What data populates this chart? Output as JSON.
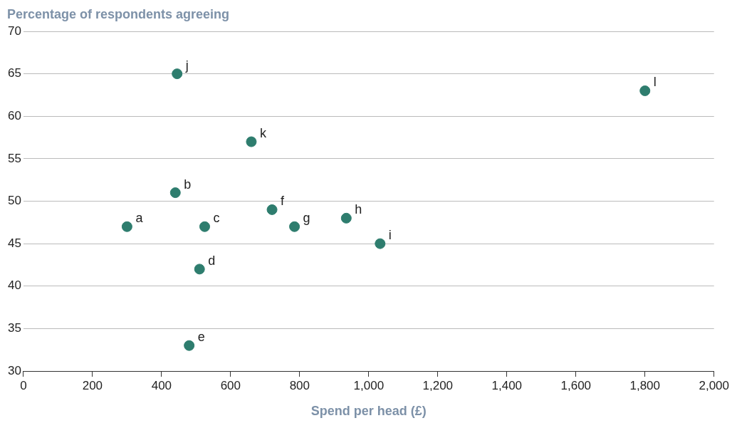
{
  "chart_data": {
    "type": "scatter",
    "xlabel": "Spend per head (£)",
    "ylabel": "Percentage of respondents agreeing",
    "x": [
      300,
      440,
      525,
      510,
      480,
      720,
      785,
      935,
      1033,
      445,
      660,
      1800
    ],
    "values": [
      47,
      51,
      47,
      42,
      33,
      49,
      47,
      48,
      45,
      65,
      57,
      63
    ],
    "color": "#2e7d6e",
    "marker": "circle",
    "grid": "y",
    "legend": false,
    "xlim": [
      0,
      2000
    ],
    "ylim": [
      30,
      70
    ],
    "xticks": [
      0,
      200,
      400,
      600,
      800,
      {
        "value": 1000,
        "label": "1,000"
      },
      {
        "value": 1200,
        "label": "1,200"
      },
      {
        "value": 1400,
        "label": "1,400"
      },
      {
        "value": 1600,
        "label": "1,600"
      },
      {
        "value": 1800,
        "label": "1,800"
      },
      {
        "value": 2000,
        "label": "2,000"
      }
    ],
    "yticks": [
      30,
      35,
      40,
      45,
      50,
      55,
      60,
      65,
      70
    ],
    "annotations": [
      {
        "text": "a",
        "x": 300,
        "y": 47
      },
      {
        "text": "b",
        "x": 440,
        "y": 51
      },
      {
        "text": "c",
        "x": 525,
        "y": 47
      },
      {
        "text": "d",
        "x": 510,
        "y": 42
      },
      {
        "text": "e",
        "x": 480,
        "y": 33
      },
      {
        "text": "f",
        "x": 720,
        "y": 49
      },
      {
        "text": "g",
        "x": 785,
        "y": 47
      },
      {
        "text": "h",
        "x": 935,
        "y": 48
      },
      {
        "text": "i",
        "x": 1033,
        "y": 45
      },
      {
        "text": "j",
        "x": 445,
        "y": 65
      },
      {
        "text": "k",
        "x": 660,
        "y": 57
      },
      {
        "text": "l",
        "x": 1800,
        "y": 63
      }
    ]
  }
}
